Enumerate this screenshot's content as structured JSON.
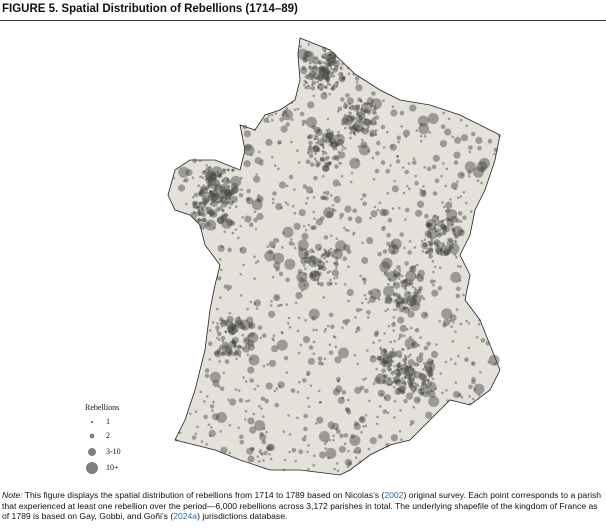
{
  "figure": {
    "title": "FIGURE 5.   Spatial Distribution of Rebellions (1714–89)"
  },
  "legend": {
    "title": "Rebellions",
    "entries": [
      "1",
      "2",
      "3-10",
      "10+"
    ]
  },
  "note": {
    "label": "Note:",
    "text1": " This figure displays the spatial distribution of rebellions from 1714 to 1789 based on Nicolas’s (",
    "link1": "2002",
    "text2": ") original survey. Each point corresponds to a parish that experienced at least one rebellion over the period—6,000 rebellions across 3,172 parishes in total. The underlying shapefile of the kingdom of France as of 1789 is based on Gay, Gobbi, and Goñi’s (",
    "link2": "2024a",
    "text3": ") jurisdictions database."
  }
}
